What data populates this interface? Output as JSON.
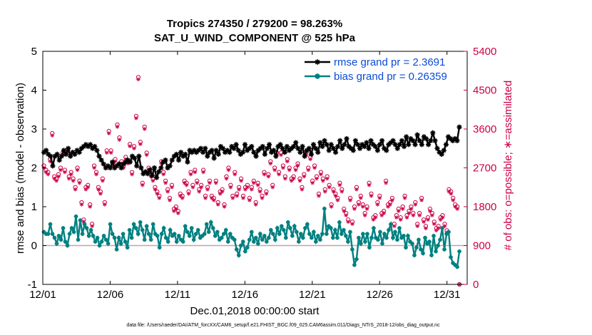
{
  "chart_data": {
    "type": "line",
    "title": "Tropics 274350 / 279200 = 98.263%",
    "subtitle": "SAT_U_WIND_COMPONENT @ 525 hPa",
    "xlabel": "Dec.01,2018 00:00:00 start",
    "ylabel_left": "rmse and bias (model - observation)",
    "ylabel_right": "# of obs: o=possible; ∗=assimilated",
    "footer": "data file: /Users/raeder/DAI/ATM_forcXX/CAM6_setup/f.e21.FHIST_BGC.f09_025.CAM6assim.011/Diags_NTrS_2018-12/obs_diag_output.nc",
    "x_range": [
      0,
      31.5
    ],
    "ylim_left": [
      -1,
      5
    ],
    "ylim_right": [
      0,
      5400
    ],
    "x_ticks": [
      {
        "value": 0,
        "label": "12/01"
      },
      {
        "value": 5,
        "label": "12/06"
      },
      {
        "value": 10,
        "label": "12/11"
      },
      {
        "value": 15,
        "label": "12/16"
      },
      {
        "value": 20,
        "label": "12/21"
      },
      {
        "value": 25,
        "label": "12/26"
      },
      {
        "value": 30,
        "label": "12/31"
      }
    ],
    "y_ticks_left": [
      -1,
      0,
      1,
      2,
      3,
      4,
      5
    ],
    "y_ticks_right": [
      0,
      900,
      1800,
      2700,
      3600,
      4500,
      5400
    ],
    "zero_line": 0,
    "colors": {
      "rmse": "#000000",
      "bias": "#008080",
      "obs": "#cc0044",
      "zero": "#c8a0a8",
      "legend_text": "#0a4bd6"
    },
    "legend": [
      {
        "label": "rmse grand pr = 2.3691",
        "series": "rmse"
      },
      {
        "label": "bias grand pr = 0.26359",
        "series": "bias"
      }
    ],
    "series": [
      {
        "name": "rmse",
        "axis": "left",
        "marker": "asterisk",
        "values": [
          2.4,
          2.45,
          2.35,
          2.3,
          2.05,
          2.3,
          2.35,
          2.2,
          2.3,
          2.45,
          2.35,
          2.5,
          2.3,
          2.4,
          2.35,
          2.45,
          2.4,
          2.5,
          2.55,
          2.6,
          2.55,
          2.6,
          2.5,
          2.55,
          2.45,
          2.3,
          2.2,
          2.1,
          2.0,
          2.05,
          2.0,
          2.15,
          2.0,
          2.05,
          2.1,
          2.0,
          2.1,
          2.15,
          2.2,
          2.15,
          2.3,
          2.25,
          2.05,
          2.3,
          2.0,
          1.85,
          1.9,
          1.85,
          1.95,
          1.8,
          2.0,
          1.75,
          1.9,
          2.0,
          2.15,
          2.2,
          2.0,
          2.05,
          2.2,
          2.3,
          2.35,
          2.2,
          2.4,
          2.3,
          2.35,
          2.15,
          2.45,
          2.4,
          2.45,
          2.4,
          2.45,
          2.5,
          2.4,
          2.5,
          2.3,
          2.4,
          2.45,
          2.25,
          2.45,
          2.35,
          2.55,
          2.5,
          2.4,
          2.45,
          2.4,
          2.55,
          2.5,
          2.6,
          2.45,
          2.35,
          2.4,
          2.6,
          2.45,
          2.5,
          2.55,
          2.4,
          2.3,
          2.45,
          2.5,
          2.55,
          2.35,
          2.5,
          2.6,
          2.4,
          2.45,
          2.3,
          2.55,
          2.6,
          2.5,
          2.4,
          2.55,
          2.45,
          2.5,
          2.55,
          2.65,
          2.5,
          2.4,
          2.55,
          2.3,
          2.45,
          2.5,
          2.35,
          2.6,
          2.5,
          2.4,
          2.65,
          2.55,
          2.7,
          2.6,
          2.45,
          2.6,
          2.5,
          2.4,
          2.55,
          2.7,
          2.5,
          2.6,
          2.75,
          2.55,
          2.5,
          2.45,
          2.7,
          2.6,
          2.5,
          2.6,
          2.55,
          2.65,
          2.5,
          2.7,
          2.6,
          2.55,
          2.45,
          2.6,
          2.7,
          2.5,
          2.45,
          2.6,
          2.65,
          2.7,
          2.6,
          2.5,
          2.6,
          2.7,
          2.55,
          2.8,
          2.6,
          2.75,
          2.7,
          2.6,
          2.85,
          2.7,
          2.6,
          2.8,
          2.75,
          2.6,
          2.7,
          2.9,
          2.7,
          2.5,
          2.4,
          2.35,
          2.45,
          2.6,
          2.8,
          2.75,
          2.7,
          2.75,
          2.7,
          3.05
        ]
      },
      {
        "name": "bias",
        "axis": "left",
        "marker": "dot",
        "values": [
          0.35,
          0.3,
          0.3,
          0.55,
          0.3,
          0.2,
          0.05,
          0.25,
          0.15,
          0.45,
          0.1,
          0.0,
          0.3,
          0.45,
          0.35,
          0.75,
          0.15,
          0.65,
          0.3,
          0.55,
          0.45,
          0.25,
          0.4,
          0.25,
          0.1,
          0.2,
          0.0,
          0.1,
          0.25,
          0.15,
          0.05,
          0.55,
          0.3,
          0.2,
          -0.1,
          0.2,
          0.05,
          0.3,
          0.1,
          -0.05,
          0.4,
          0.2,
          0.55,
          0.45,
          0.3,
          0.6,
          0.4,
          0.15,
          0.5,
          0.3,
          0.15,
          0.55,
          0.3,
          0.25,
          -0.05,
          0.3,
          0.45,
          0.2,
          0.1,
          0.4,
          0.25,
          0.3,
          0.1,
          0.25,
          0.15,
          0.1,
          0.5,
          0.35,
          0.25,
          0.45,
          0.15,
          0.3,
          0.4,
          0.2,
          0.25,
          0.3,
          0.55,
          0.35,
          0.6,
          0.45,
          0.25,
          0.35,
          0.15,
          0.2,
          0.3,
          0.4,
          0.1,
          0.3,
          0.2,
          0.15,
          -0.1,
          -0.25,
          0.0,
          0.1,
          -0.15,
          -0.05,
          0.15,
          0.35,
          0.1,
          0.2,
          0.05,
          0.3,
          0.15,
          0.25,
          0.1,
          0.2,
          0.4,
          0.3,
          0.15,
          0.45,
          0.3,
          0.5,
          0.4,
          0.2,
          0.6,
          0.45,
          0.25,
          0.5,
          0.35,
          0.1,
          0.3,
          0.2,
          0.45,
          0.55,
          0.3,
          0.2,
          0.35,
          0.1,
          0.25,
          0.15,
          0.3,
          0.95,
          0.3,
          0.5,
          0.45,
          0.2,
          0.4,
          0.2,
          0.6,
          0.3,
          0.4,
          0.25,
          0.1,
          0.35,
          -0.1,
          -0.5,
          -0.35,
          0.2,
          0.05,
          0.3,
          0.1,
          0.3,
          -0.05,
          0.2,
          0.45,
          0.2,
          0.15,
          0.35,
          0.05,
          0.3,
          0.2,
          0.4,
          0.55,
          0.2,
          0.35,
          0.15,
          0.45,
          0.2,
          0.25,
          -0.05,
          0.25,
          0.1,
          0.05,
          -0.25,
          -0.05,
          0.15,
          -0.1,
          -0.2,
          0.2,
          0.05,
          0.1,
          -0.25,
          0.25,
          -0.15,
          0.0,
          0.15,
          0.45,
          -0.1,
          0.3,
          0.35,
          -0.3,
          -0.45,
          -0.5,
          -0.55,
          -0.15
        ]
      },
      {
        "name": "obs possible",
        "axis": "right",
        "marker": "circle",
        "values": [
          2750,
          2650,
          2600,
          2900,
          3500,
          2500,
          2450,
          2550,
          2700,
          3050,
          2650,
          3100,
          2500,
          2600,
          2450,
          2250,
          2700,
          2400,
          1900,
          1500,
          2250,
          2300,
          1850,
          1400,
          2750,
          2600,
          2250,
          2150,
          2450,
          1900,
          3100,
          3550,
          3100,
          2800,
          2900,
          3700,
          3400,
          2850,
          2750,
          2950,
          2850,
          3250,
          2600,
          3200,
          3900,
          4800,
          3300,
          2350,
          3650,
          3050,
          2700,
          2550,
          2450,
          2250,
          2150,
          2050,
          2850,
          2600,
          2400,
          2200,
          2000,
          2300,
          1750,
          1800,
          1700,
          2100,
          2050,
          2400,
          2350,
          2150,
          2600,
          2300,
          2650,
          2400,
          2200,
          2300,
          2650,
          2050,
          2250,
          2400,
          2050,
          2000,
          2400,
          1900,
          2150,
          2200,
          1850,
          2500,
          2700,
          2300,
          2050,
          2600,
          2100,
          2250,
          2450,
          2050,
          2250,
          2300,
          2000,
          2250,
          2400,
          1900,
          2350,
          2200,
          2050,
          2600,
          2150,
          2550,
          2850,
          2300,
          2700,
          3050,
          2600,
          3050,
          2750,
          2500,
          2900,
          2700,
          2450,
          2500,
          2700,
          2800,
          2450,
          2250,
          2550,
          3050,
          2700,
          2950,
          2400,
          2750,
          2500,
          2100,
          2600,
          2450,
          2200,
          2500,
          2300,
          1850,
          2200,
          2100,
          2000,
          2350,
          2200,
          1750,
          1650,
          1500,
          2000,
          1450,
          1800,
          2250,
          1900,
          2050,
          1850,
          1650,
          1800,
          2350,
          2100,
          1550,
          1600,
          1900,
          2050,
          1650,
          1700,
          2400,
          1850,
          1900,
          2000,
          1400,
          1600,
          1750,
          1550,
          1800,
          2050,
          1600,
          1700,
          1800,
          1650,
          1900,
          1400,
          1650,
          2000,
          1500,
          1350,
          1550,
          1750,
          1650,
          1450,
          1300,
          1350,
          1550,
          1600,
          1400,
          1250,
          2200,
          2150,
          2000,
          1850,
          1800,
          0
        ]
      },
      {
        "name": "obs assimilated",
        "axis": "right",
        "marker": "asterisk",
        "values": [
          2700,
          2600,
          2550,
          2850,
          3450,
          2450,
          2400,
          2500,
          2650,
          3000,
          2600,
          3050,
          2450,
          2550,
          2400,
          2200,
          2650,
          2350,
          1850,
          1450,
          2200,
          2250,
          1800,
          1350,
          2700,
          2550,
          2200,
          2100,
          2400,
          1850,
          3050,
          3500,
          3050,
          2750,
          2850,
          3650,
          3350,
          2800,
          2700,
          2900,
          2800,
          3200,
          2550,
          3150,
          3850,
          4750,
          3250,
          2300,
          3600,
          3000,
          2650,
          2500,
          2400,
          2200,
          2100,
          2000,
          2800,
          2550,
          2350,
          2150,
          1950,
          2250,
          1700,
          1750,
          1650,
          2050,
          2000,
          2350,
          2300,
          2100,
          2550,
          2250,
          2600,
          2350,
          2150,
          2250,
          2600,
          2000,
          2200,
          2350,
          2000,
          1950,
          2350,
          1850,
          2100,
          2150,
          1800,
          2450,
          2650,
          2250,
          2000,
          2550,
          2050,
          2200,
          2400,
          2000,
          2200,
          2250,
          1950,
          2200,
          2350,
          1850,
          2300,
          2150,
          2000,
          2550,
          2100,
          2500,
          2800,
          2250,
          2650,
          3000,
          2550,
          3000,
          2700,
          2450,
          2850,
          2650,
          2400,
          2450,
          2650,
          2750,
          2400,
          2200,
          2500,
          3000,
          2650,
          2900,
          2350,
          2700,
          2450,
          2050,
          2550,
          2400,
          2150,
          2450,
          2250,
          1800,
          2150,
          2050,
          1950,
          2300,
          2150,
          1700,
          1600,
          1450,
          1950,
          1400,
          1750,
          2200,
          1850,
          2000,
          1800,
          1600,
          1750,
          2300,
          2050,
          1500,
          1550,
          1850,
          2000,
          1600,
          1650,
          2350,
          1800,
          1850,
          1950,
          1350,
          1550,
          1700,
          1500,
          1750,
          2000,
          1550,
          1650,
          1750,
          1600,
          1850,
          1350,
          1600,
          1950,
          1450,
          1300,
          1500,
          1700,
          1600,
          1400,
          1250,
          1300,
          1500,
          1550,
          1350,
          1200,
          2150,
          2100,
          1950,
          1800,
          1750,
          0
        ]
      }
    ]
  }
}
